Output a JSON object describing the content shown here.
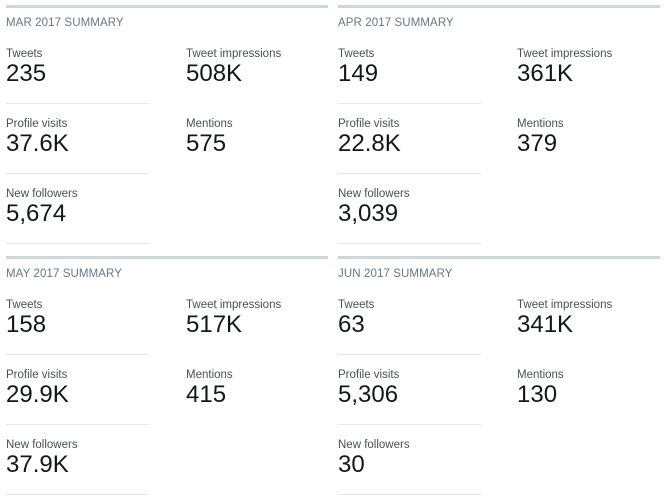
{
  "summaries": [
    {
      "title": "MAR 2017 SUMMARY",
      "tweets": {
        "label": "Tweets",
        "value": "235"
      },
      "impressions": {
        "label": "Tweet impressions",
        "value": "508K"
      },
      "profile_visits": {
        "label": "Profile visits",
        "value": "37.6K"
      },
      "mentions": {
        "label": "Mentions",
        "value": "575"
      },
      "new_followers": {
        "label": "New followers",
        "value": "5,674"
      }
    },
    {
      "title": "APR 2017 SUMMARY",
      "tweets": {
        "label": "Tweets",
        "value": "149"
      },
      "impressions": {
        "label": "Tweet impressions",
        "value": "361K"
      },
      "profile_visits": {
        "label": "Profile visits",
        "value": "22.8K"
      },
      "mentions": {
        "label": "Mentions",
        "value": "379"
      },
      "new_followers": {
        "label": "New followers",
        "value": "3,039"
      }
    },
    {
      "title": "MAY 2017 SUMMARY",
      "tweets": {
        "label": "Tweets",
        "value": "158"
      },
      "impressions": {
        "label": "Tweet impressions",
        "value": "517K"
      },
      "profile_visits": {
        "label": "Profile visits",
        "value": "29.9K"
      },
      "mentions": {
        "label": "Mentions",
        "value": "415"
      },
      "new_followers": {
        "label": "New followers",
        "value": "37.9K"
      }
    },
    {
      "title": "JUN 2017 SUMMARY",
      "tweets": {
        "label": "Tweets",
        "value": "63"
      },
      "impressions": {
        "label": "Tweet impressions",
        "value": "341K"
      },
      "profile_visits": {
        "label": "Profile visits",
        "value": "5,306"
      },
      "mentions": {
        "label": "Mentions",
        "value": "130"
      },
      "new_followers": {
        "label": "New followers",
        "value": "30"
      }
    }
  ]
}
